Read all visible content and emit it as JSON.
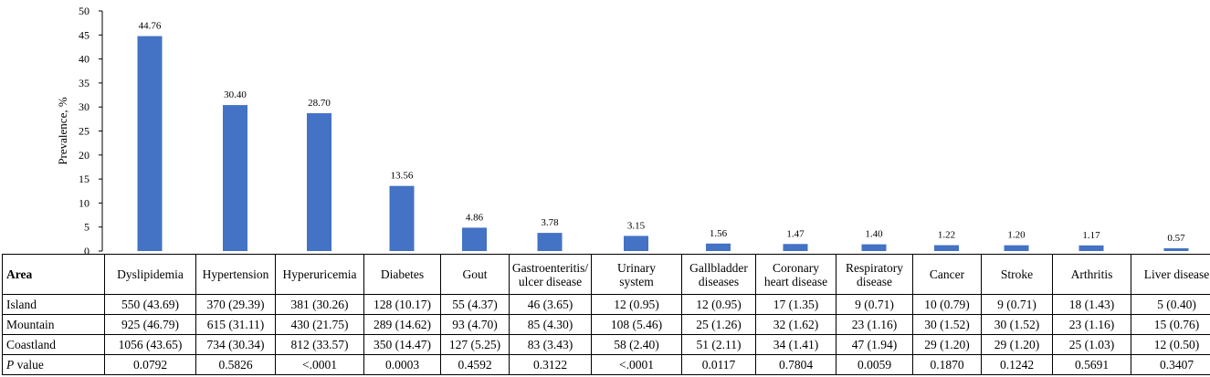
{
  "chart_data": {
    "type": "bar",
    "ylabel": "Prevalence, %",
    "ylim": [
      0,
      50
    ],
    "yticks": [
      0,
      5,
      10,
      15,
      20,
      25,
      30,
      35,
      40,
      45,
      50
    ],
    "bar_color": "#4472C4",
    "categories": [
      "Dyslipidemia",
      "Hypertension",
      "Hyperuricemia",
      "Diabetes",
      "Gout",
      "Gastroenteritis/ ulcer disease",
      "Urinary system",
      "Gallbladder diseases",
      "Coronary heart disease",
      "Respiratory disease",
      "Cancer",
      "Stroke",
      "Arthritis",
      "Liver disease"
    ],
    "values": [
      44.76,
      30.4,
      28.7,
      13.56,
      4.86,
      3.78,
      3.15,
      1.56,
      1.47,
      1.4,
      1.22,
      1.2,
      1.17,
      0.57
    ],
    "value_labels": [
      "44.76",
      "30.40",
      "28.70",
      "13.56",
      "4.86",
      "3.78",
      "3.15",
      "1.56",
      "1.47",
      "1.40",
      "1.22",
      "1.20",
      "1.17",
      "0.57"
    ]
  },
  "table": {
    "area_header": "Area",
    "headers": [
      [
        "Dyslipidemia"
      ],
      [
        "Hypertension"
      ],
      [
        "Hyperuricemia"
      ],
      [
        "Diabetes"
      ],
      [
        "Gout"
      ],
      [
        "Gastroenteritis/",
        "ulcer disease"
      ],
      [
        "Urinary",
        "system"
      ],
      [
        "Gallbladder",
        "diseases"
      ],
      [
        "Coronary",
        "heart disease"
      ],
      [
        "Respiratory",
        "disease"
      ],
      [
        "Cancer"
      ],
      [
        "Stroke"
      ],
      [
        "Arthritis"
      ],
      [
        "Liver disease"
      ]
    ],
    "rows": [
      {
        "label": "Island",
        "values": [
          "550 (43.69)",
          "370 (29.39)",
          "381 (30.26)",
          "128 (10.17)",
          "55 (4.37)",
          "46 (3.65)",
          "12 (0.95)",
          "12 (0.95)",
          "17 (1.35)",
          "9 (0.71)",
          "10 (0.79)",
          "9 (0.71)",
          "18 (1.43)",
          "5 (0.40)"
        ]
      },
      {
        "label": "Mountain",
        "values": [
          "925 (46.79)",
          "615 (31.11)",
          "430 (21.75)",
          "289 (14.62)",
          "93 (4.70)",
          "85 (4.30)",
          "108 (5.46)",
          "25 (1.26)",
          "32 (1.62)",
          "23 (1.16)",
          "30 (1.52)",
          "30 (1.52)",
          "23 (1.16)",
          "15 (0.76)"
        ]
      },
      {
        "label": "Coastland",
        "values": [
          "1056 (43.65)",
          "734 (30.34)",
          "812 (33.57)",
          "350 (14.47)",
          "127 (5.25)",
          "83 (3.43)",
          "58 (2.40)",
          "51 (2.11)",
          "34 (1.41)",
          "47 (1.94)",
          "29 (1.20)",
          "29 (1.20)",
          "25 (1.03)",
          "12 (0.50)"
        ]
      }
    ],
    "pvalue_row": {
      "label_p": "P",
      "label_rest": " value",
      "values": [
        "0.0792",
        "0.5826",
        "<.0001",
        "0.0003",
        "0.4592",
        "0.3122",
        "<.0001",
        "0.0117",
        "0.7804",
        "0.0059",
        "0.1870",
        "0.1242",
        "0.5691",
        "0.3407"
      ]
    }
  }
}
